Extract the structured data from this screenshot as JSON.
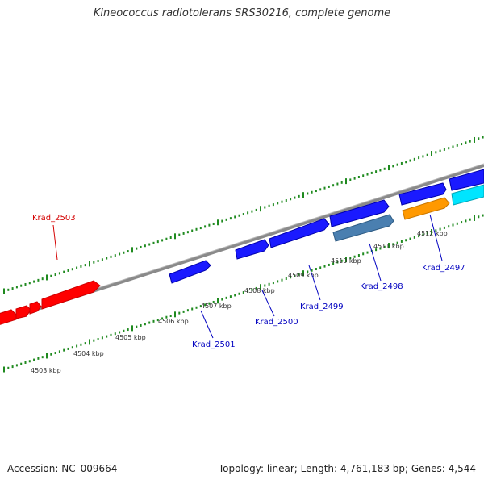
{
  "title": "Kineococcus radiotolerans SRS30216, complete genome",
  "footer": {
    "accession": "Accession: NC_009664",
    "summary": "Topology: linear; Length: 4,761,183 bp; Genes: 4,544"
  },
  "colors": {
    "background": "#ffffff",
    "backbone": "#8a8a8a",
    "tick": "#1f8a1f",
    "highlight_gene": "#ff0000",
    "gene_blue": "#1a1aff",
    "gene_steel": "#4a7fb0",
    "gene_orange": "#ff9900",
    "gene_cyan": "#00e5ff",
    "label_red": "#d40000",
    "label_blue": "#0000c0",
    "kbp_label": "#333333"
  },
  "scale_labels": [
    "4503 kbp",
    "4504 kbp",
    "4505 kbp",
    "4506 kbp",
    "4507 kbp",
    "4508 kbp",
    "4509 kbp",
    "4510 kbp",
    "4511 kbp",
    "4512 kbp"
  ],
  "genes": [
    {
      "label": "Krad_2503",
      "color": "red"
    },
    {
      "label": "Krad_2501",
      "color": "blue"
    },
    {
      "label": "Krad_2500",
      "color": "blue"
    },
    {
      "label": "Krad_2499",
      "color": "blue"
    },
    {
      "label": "Krad_2498",
      "color": "blue"
    },
    {
      "label": "Krad_2497",
      "color": "blue"
    }
  ]
}
